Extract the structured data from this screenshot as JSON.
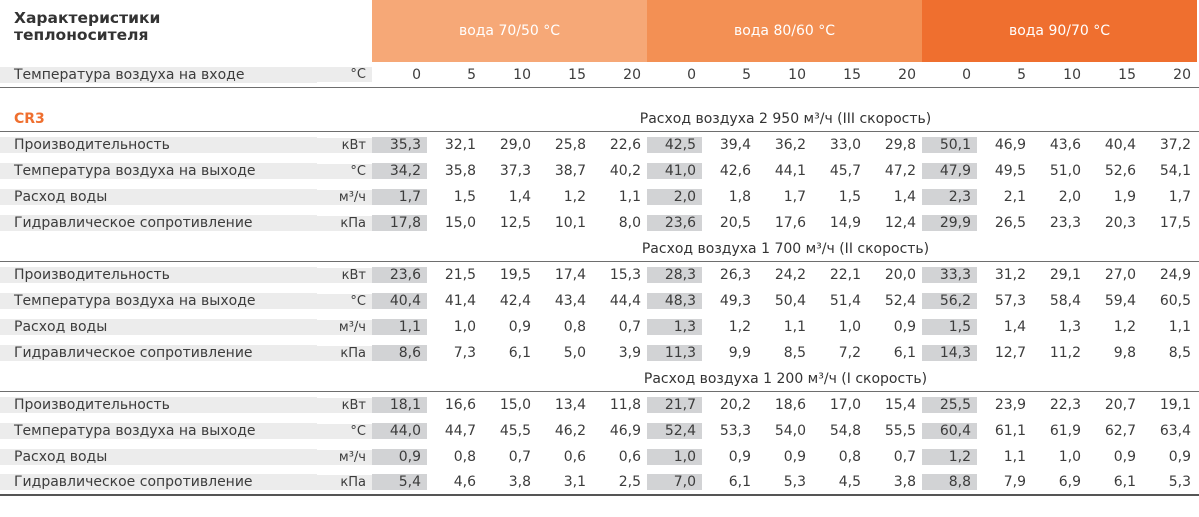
{
  "header": {
    "title_line1": "Характеристики",
    "title_line2": "теплоносителя",
    "groups": [
      "вода 70/50 °С",
      "вода 80/60 °С",
      "вода 90/70 °С"
    ],
    "colors": {
      "g0": "#f6a877",
      "g1": "#f39054",
      "g2": "#ef6f2f"
    }
  },
  "temp_row": {
    "label": "Температура воздуха на входе",
    "unit": "°С",
    "values": [
      "0",
      "5",
      "10",
      "15",
      "20",
      "0",
      "5",
      "10",
      "15",
      "20",
      "0",
      "5",
      "10",
      "15",
      "20"
    ]
  },
  "model": "CR3",
  "sections": [
    {
      "caption": "Расход воздуха 2 950 м³/ч (III скорость)",
      "rows": [
        {
          "label": "Производительность",
          "unit": "кВт",
          "values": [
            "35,3",
            "32,1",
            "29,0",
            "25,8",
            "22,6",
            "42,5",
            "39,4",
            "36,2",
            "33,0",
            "29,8",
            "50,1",
            "46,9",
            "43,6",
            "40,4",
            "37,2"
          ]
        },
        {
          "label": "Температура воздуха на выходе",
          "unit": "°С",
          "values": [
            "34,2",
            "35,8",
            "37,3",
            "38,7",
            "40,2",
            "41,0",
            "42,6",
            "44,1",
            "45,7",
            "47,2",
            "47,9",
            "49,5",
            "51,0",
            "52,6",
            "54,1"
          ]
        },
        {
          "label": "Расход воды",
          "unit": "м³/ч",
          "values": [
            "1,7",
            "1,5",
            "1,4",
            "1,2",
            "1,1",
            "2,0",
            "1,8",
            "1,7",
            "1,5",
            "1,4",
            "2,3",
            "2,1",
            "2,0",
            "1,9",
            "1,7"
          ]
        },
        {
          "label": "Гидравлическое сопротивление",
          "unit": "кПа",
          "values": [
            "17,8",
            "15,0",
            "12,5",
            "10,1",
            "8,0",
            "23,6",
            "20,5",
            "17,6",
            "14,9",
            "12,4",
            "29,9",
            "26,5",
            "23,3",
            "20,3",
            "17,5"
          ]
        }
      ]
    },
    {
      "caption": "Расход воздуха 1 700 м³/ч (II скорость)",
      "rows": [
        {
          "label": "Производительность",
          "unit": "кВт",
          "values": [
            "23,6",
            "21,5",
            "19,5",
            "17,4",
            "15,3",
            "28,3",
            "26,3",
            "24,2",
            "22,1",
            "20,0",
            "33,3",
            "31,2",
            "29,1",
            "27,0",
            "24,9"
          ]
        },
        {
          "label": "Температура воздуха на выходе",
          "unit": "°С",
          "values": [
            "40,4",
            "41,4",
            "42,4",
            "43,4",
            "44,4",
            "48,3",
            "49,3",
            "50,4",
            "51,4",
            "52,4",
            "56,2",
            "57,3",
            "58,4",
            "59,4",
            "60,5"
          ]
        },
        {
          "label": "Расход воды",
          "unit": "м³/ч",
          "values": [
            "1,1",
            "1,0",
            "0,9",
            "0,8",
            "0,7",
            "1,3",
            "1,2",
            "1,1",
            "1,0",
            "0,9",
            "1,5",
            "1,4",
            "1,3",
            "1,2",
            "1,1"
          ]
        },
        {
          "label": "Гидравлическое сопротивление",
          "unit": "кПа",
          "values": [
            "8,6",
            "7,3",
            "6,1",
            "5,0",
            "3,9",
            "11,3",
            "9,9",
            "8,5",
            "7,2",
            "6,1",
            "14,3",
            "12,7",
            "11,2",
            "9,8",
            "8,5"
          ]
        }
      ]
    },
    {
      "caption": "Расход воздуха 1 200 м³/ч (I скорость)",
      "rows": [
        {
          "label": "Производительность",
          "unit": "кВт",
          "values": [
            "18,1",
            "16,6",
            "15,0",
            "13,4",
            "11,8",
            "21,7",
            "20,2",
            "18,6",
            "17,0",
            "15,4",
            "25,5",
            "23,9",
            "22,3",
            "20,7",
            "19,1"
          ]
        },
        {
          "label": "Температура воздуха на выходе",
          "unit": "°С",
          "values": [
            "44,0",
            "44,7",
            "45,5",
            "46,2",
            "46,9",
            "52,4",
            "53,3",
            "54,0",
            "54,8",
            "55,5",
            "60,4",
            "61,1",
            "61,9",
            "62,7",
            "63,4"
          ]
        },
        {
          "label": "Расход воды",
          "unit": "м³/ч",
          "values": [
            "0,9",
            "0,8",
            "0,7",
            "0,6",
            "0,6",
            "1,0",
            "0,9",
            "0,9",
            "0,8",
            "0,7",
            "1,2",
            "1,1",
            "1,0",
            "0,9",
            "0,9"
          ]
        },
        {
          "label": "Гидравлическое сопротивление",
          "unit": "кПа",
          "values": [
            "5,4",
            "4,6",
            "3,8",
            "3,1",
            "2,5",
            "7,0",
            "6,1",
            "5,3",
            "4,5",
            "3,8",
            "8,8",
            "7,9",
            "6,9",
            "6,1",
            "5,3"
          ]
        }
      ]
    }
  ]
}
